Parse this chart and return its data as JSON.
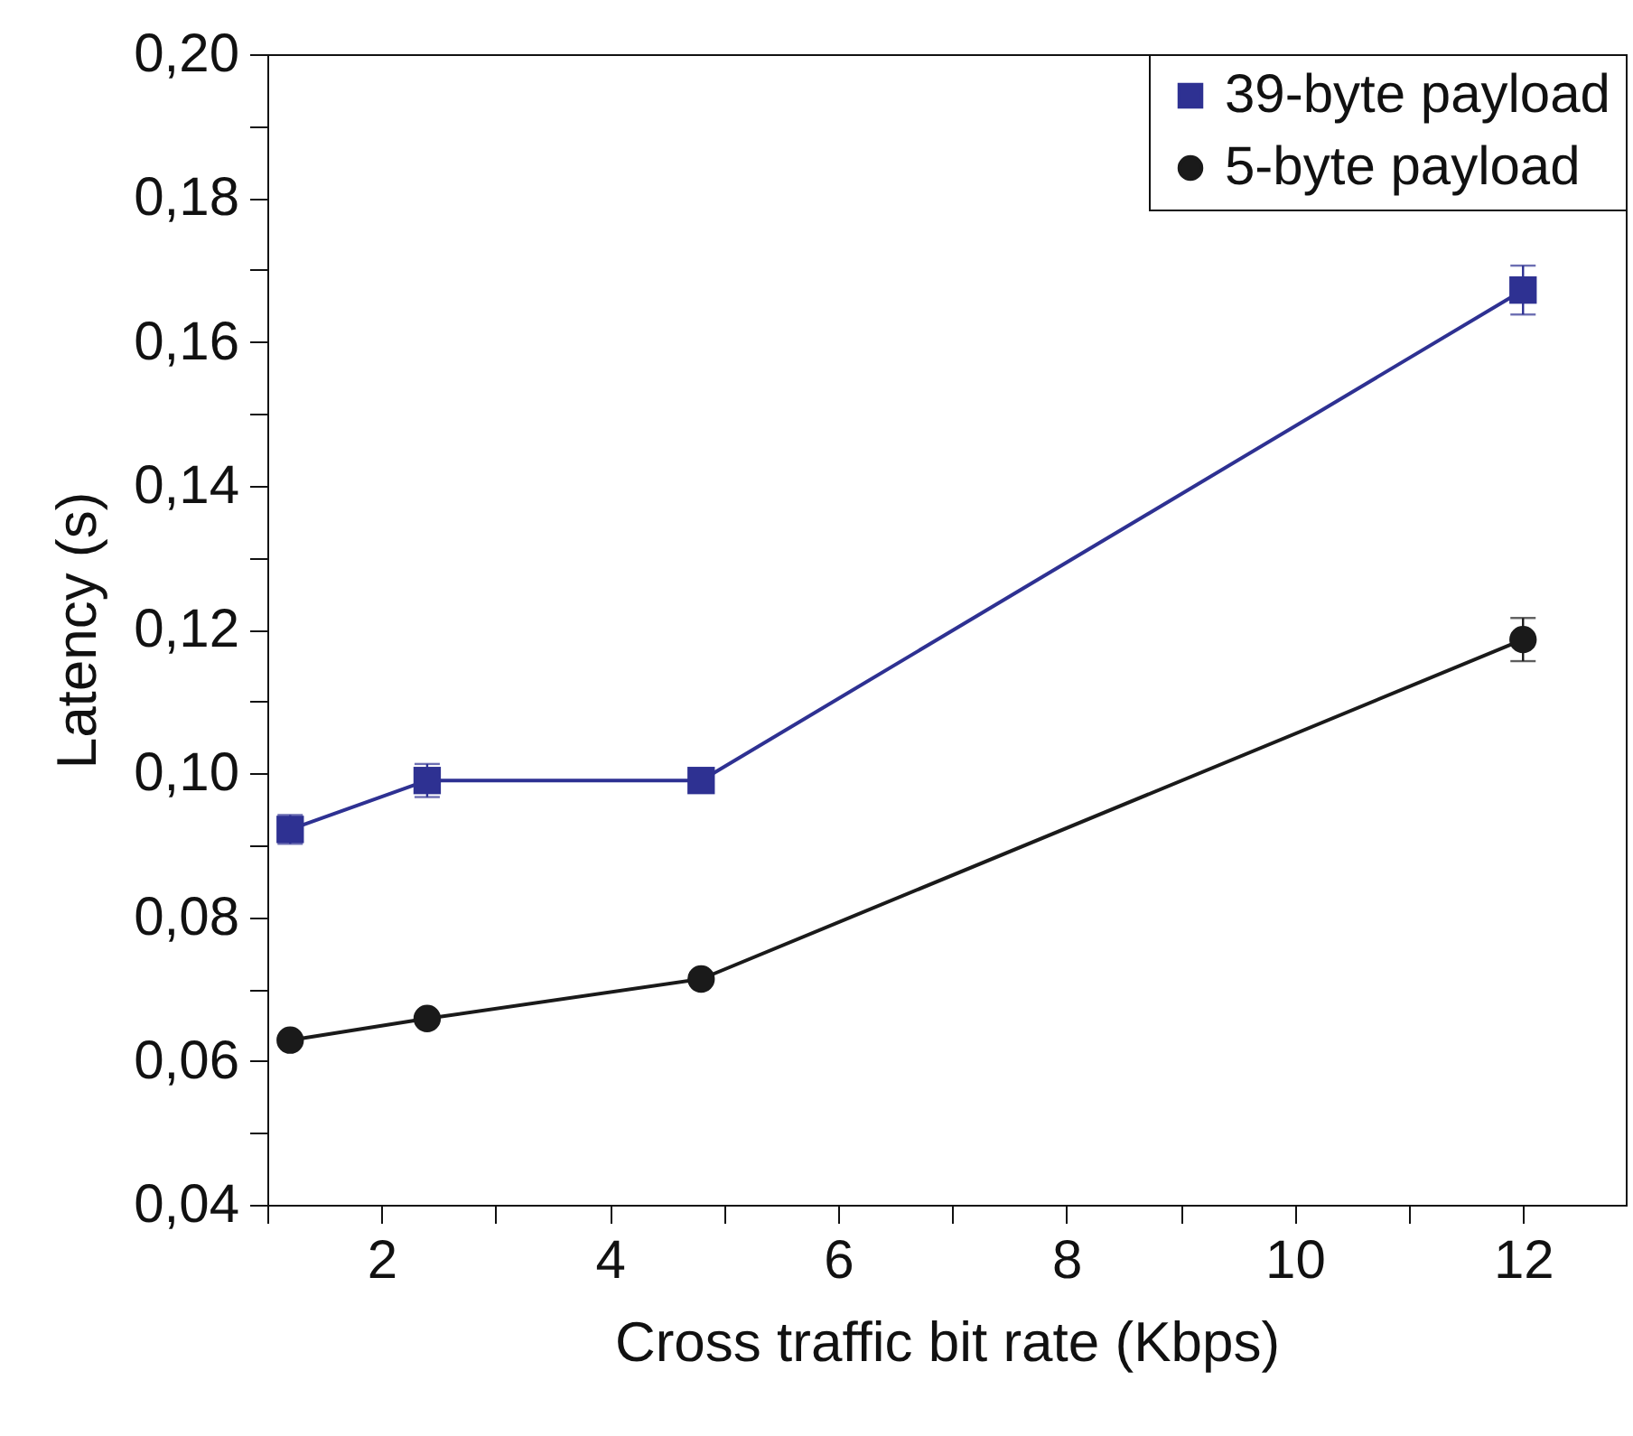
{
  "chart_data": {
    "type": "line",
    "xlabel": "Cross traffic bit rate (Kbps)",
    "ylabel": "Latency (s)",
    "x": [
      1.2,
      2.4,
      4.8,
      12
    ],
    "series": [
      {
        "name": "39-byte payload",
        "color": "#2e3192",
        "marker": "square",
        "values": [
          0.0922,
          0.099,
          0.099,
          0.1672
        ],
        "errors": [
          0.002,
          0.0023,
          null,
          0.0034
        ]
      },
      {
        "name": "5-byte payload",
        "color": "#1a1a1a",
        "marker": "circle",
        "values": [
          0.0629,
          0.0659,
          0.0714,
          0.1186
        ],
        "errors": [
          null,
          null,
          null,
          0.003
        ]
      }
    ],
    "xlim": [
      1,
      12.9
    ],
    "xticks": [
      {
        "value": 1,
        "label": null
      },
      2,
      {
        "value": 3,
        "label": null
      },
      4,
      {
        "value": 5,
        "label": null
      },
      6,
      {
        "value": 7,
        "label": null
      },
      8,
      {
        "value": 9,
        "label": null
      },
      10,
      {
        "value": 11,
        "label": null
      },
      12
    ],
    "ylim": [
      0.04,
      0.2
    ],
    "yticks": [
      {
        "value": 0.04,
        "label": "0,04"
      },
      {
        "value": 0.05,
        "label": null
      },
      {
        "value": 0.06,
        "label": "0,06"
      },
      {
        "value": 0.07,
        "label": null
      },
      {
        "value": 0.08,
        "label": "0,08"
      },
      {
        "value": 0.09,
        "label": null
      },
      {
        "value": 0.1,
        "label": "0,10"
      },
      {
        "value": 0.11,
        "label": null
      },
      {
        "value": 0.12,
        "label": "0,12"
      },
      {
        "value": 0.13,
        "label": null
      },
      {
        "value": 0.14,
        "label": "0,14"
      },
      {
        "value": 0.15,
        "label": null
      },
      {
        "value": 0.16,
        "label": "0,16"
      },
      {
        "value": 0.17,
        "label": null
      },
      {
        "value": 0.18,
        "label": "0,18"
      },
      {
        "value": 0.19,
        "label": null
      },
      {
        "value": 0.2,
        "label": "0,20"
      }
    ],
    "legend": "top right",
    "grid": false,
    "line_style": "solid"
  }
}
